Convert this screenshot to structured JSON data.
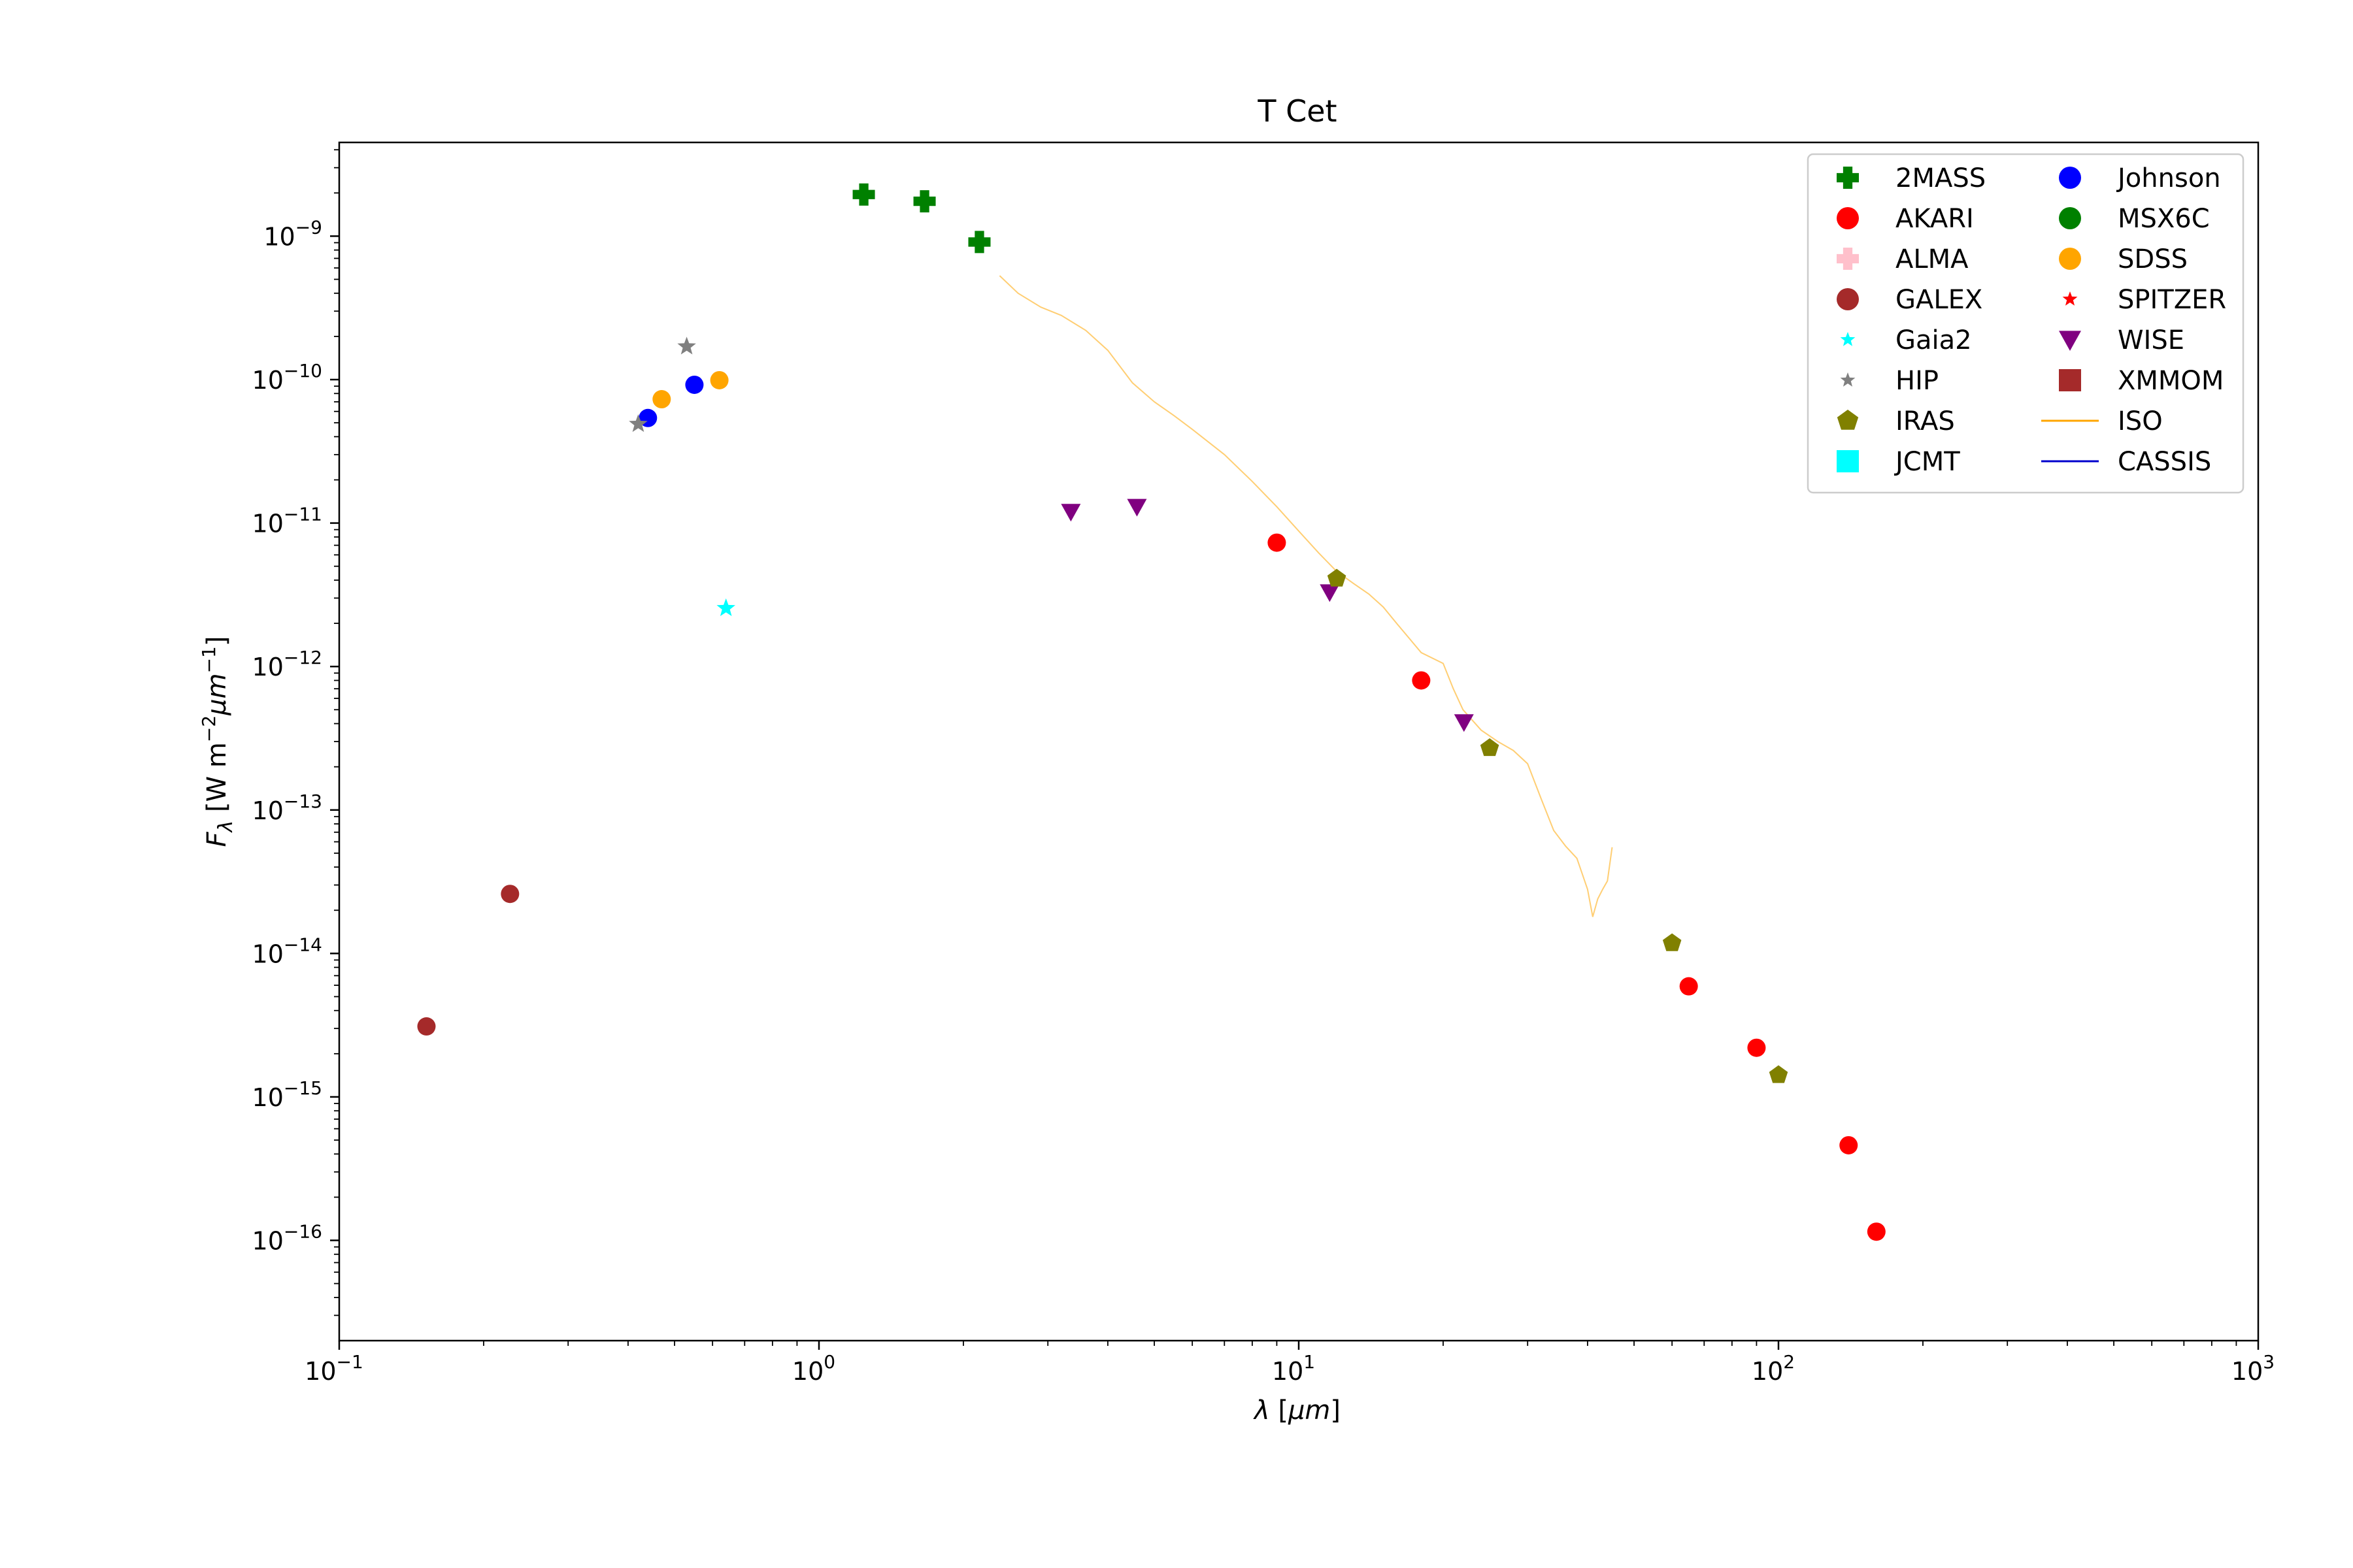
{
  "chart_data": {
    "type": "scatter",
    "title": "T Cet",
    "xlabel": "λ [μm]",
    "ylabel": "F_λ [W m^-2 μm^-1]",
    "xscale": "log",
    "yscale": "log",
    "xlim": [
      0.1,
      1000
    ],
    "ylim": [
      2e-17,
      4.5e-09
    ],
    "grid": false,
    "legend_position": "top-right",
    "x_ticks": [
      {
        "base": "10",
        "exp": "−1",
        "value": 0.1
      },
      {
        "base": "10",
        "exp": "0",
        "value": 1
      },
      {
        "base": "10",
        "exp": "1",
        "value": 10
      },
      {
        "base": "10",
        "exp": "2",
        "value": 100
      },
      {
        "base": "10",
        "exp": "3",
        "value": 1000
      }
    ],
    "y_ticks": [
      {
        "base": "10",
        "exp": "−9",
        "value": 1e-09
      },
      {
        "base": "10",
        "exp": "−10",
        "value": 1e-10
      },
      {
        "base": "10",
        "exp": "−11",
        "value": 1e-11
      },
      {
        "base": "10",
        "exp": "−12",
        "value": 1e-12
      },
      {
        "base": "10",
        "exp": "−13",
        "value": 1e-13
      },
      {
        "base": "10",
        "exp": "−14",
        "value": 1e-14
      },
      {
        "base": "10",
        "exp": "−15",
        "value": 1e-15
      },
      {
        "base": "10",
        "exp": "−16",
        "value": 1e-16
      }
    ],
    "series": [
      {
        "name": "2MASS",
        "marker": "plus",
        "color": "#008000",
        "points": [
          [
            1.24,
            1.95e-09
          ],
          [
            1.66,
            1.75e-09
          ],
          [
            2.16,
            9.1e-10
          ]
        ]
      },
      {
        "name": "Johnson",
        "marker": "circle",
        "color": "#0000ff",
        "points": [
          [
            0.44,
            5.4e-11
          ],
          [
            0.55,
            9.2e-11
          ]
        ]
      },
      {
        "name": "AKARI",
        "marker": "circle",
        "color": "#ff0000",
        "points": [
          [
            9.0,
            7.3e-12
          ],
          [
            18.0,
            8e-13
          ],
          [
            65.0,
            5.9e-15
          ],
          [
            90.0,
            2.2e-15
          ],
          [
            140.0,
            4.6e-16
          ],
          [
            160.0,
            1.15e-16
          ]
        ]
      },
      {
        "name": "MSX6C",
        "marker": "circle",
        "color": "#008000",
        "points": []
      },
      {
        "name": "ALMA",
        "marker": "plus",
        "color": "#ffc0cb",
        "points": []
      },
      {
        "name": "SDSS",
        "marker": "circle",
        "color": "#ffa500",
        "points": [
          [
            0.47,
            7.3e-11
          ],
          [
            0.62,
            9.9e-11
          ]
        ]
      },
      {
        "name": "GALEX",
        "marker": "circle",
        "color": "#a52a2a",
        "points": [
          [
            0.152,
            3.1e-15
          ],
          [
            0.227,
            2.6e-14
          ]
        ]
      },
      {
        "name": "SPITZER",
        "marker": "star",
        "color": "#ff0000",
        "points": []
      },
      {
        "name": "Gaia2",
        "marker": "star",
        "color": "#00ffff",
        "points": [
          [
            0.64,
            2.55e-12
          ]
        ]
      },
      {
        "name": "WISE",
        "marker": "triangle-down",
        "color": "#800080",
        "points": [
          [
            3.35,
            1.2e-11
          ],
          [
            4.6,
            1.3e-11
          ],
          [
            11.6,
            3.3e-12
          ],
          [
            22.1,
            4.1e-13
          ]
        ]
      },
      {
        "name": "HIP",
        "marker": "star",
        "color": "#808080",
        "points": [
          [
            0.42,
            4.9e-11
          ],
          [
            0.53,
            1.7e-10
          ]
        ]
      },
      {
        "name": "XMMOM",
        "marker": "square",
        "color": "#a52a2a",
        "points": []
      },
      {
        "name": "IRAS",
        "marker": "pentagon",
        "color": "#808000",
        "points": [
          [
            12.0,
            4.1e-12
          ],
          [
            25.0,
            2.7e-13
          ],
          [
            60.0,
            1.18e-14
          ],
          [
            100.0,
            1.42e-15
          ]
        ]
      },
      {
        "name": "ISO",
        "marker": "line",
        "color": "#ffa500",
        "points": [
          [
            2.38,
            5.3e-10
          ],
          [
            2.6,
            4e-10
          ],
          [
            2.9,
            3.2e-10
          ],
          [
            3.2,
            2.8e-10
          ],
          [
            3.6,
            2.2e-10
          ],
          [
            4.0,
            1.6e-10
          ],
          [
            4.5,
            9.5e-11
          ],
          [
            5.0,
            7e-11
          ],
          [
            5.5,
            5.6e-11
          ],
          [
            6.0,
            4.5e-11
          ],
          [
            7.0,
            3e-11
          ],
          [
            8.0,
            1.95e-11
          ],
          [
            9.0,
            1.3e-11
          ],
          [
            10.0,
            8.8e-12
          ],
          [
            11.0,
            6.2e-12
          ],
          [
            12.0,
            4.6e-12
          ],
          [
            13.0,
            3.8e-12
          ],
          [
            14.0,
            3.2e-12
          ],
          [
            15.0,
            2.6e-12
          ],
          [
            16.0,
            2e-12
          ],
          [
            18.0,
            1.25e-12
          ],
          [
            20.0,
            1.05e-12
          ],
          [
            21.0,
            7e-13
          ],
          [
            22.0,
            5e-13
          ],
          [
            24.0,
            3.6e-13
          ],
          [
            26.0,
            3e-13
          ],
          [
            28.0,
            2.6e-13
          ],
          [
            30.0,
            2.1e-13
          ],
          [
            32.0,
            1.2e-13
          ],
          [
            34.0,
            7.2e-14
          ],
          [
            36.0,
            5.6e-14
          ],
          [
            38.0,
            4.6e-14
          ],
          [
            40.0,
            2.8e-14
          ],
          [
            41.0,
            1.8e-14
          ],
          [
            42.0,
            2.4e-14
          ],
          [
            43.0,
            2.8e-14
          ],
          [
            44.0,
            3.2e-14
          ],
          [
            45.0,
            5.5e-14
          ]
        ]
      },
      {
        "name": "CASSIS",
        "marker": "line",
        "color": "#0000cd",
        "points": []
      }
    ]
  }
}
